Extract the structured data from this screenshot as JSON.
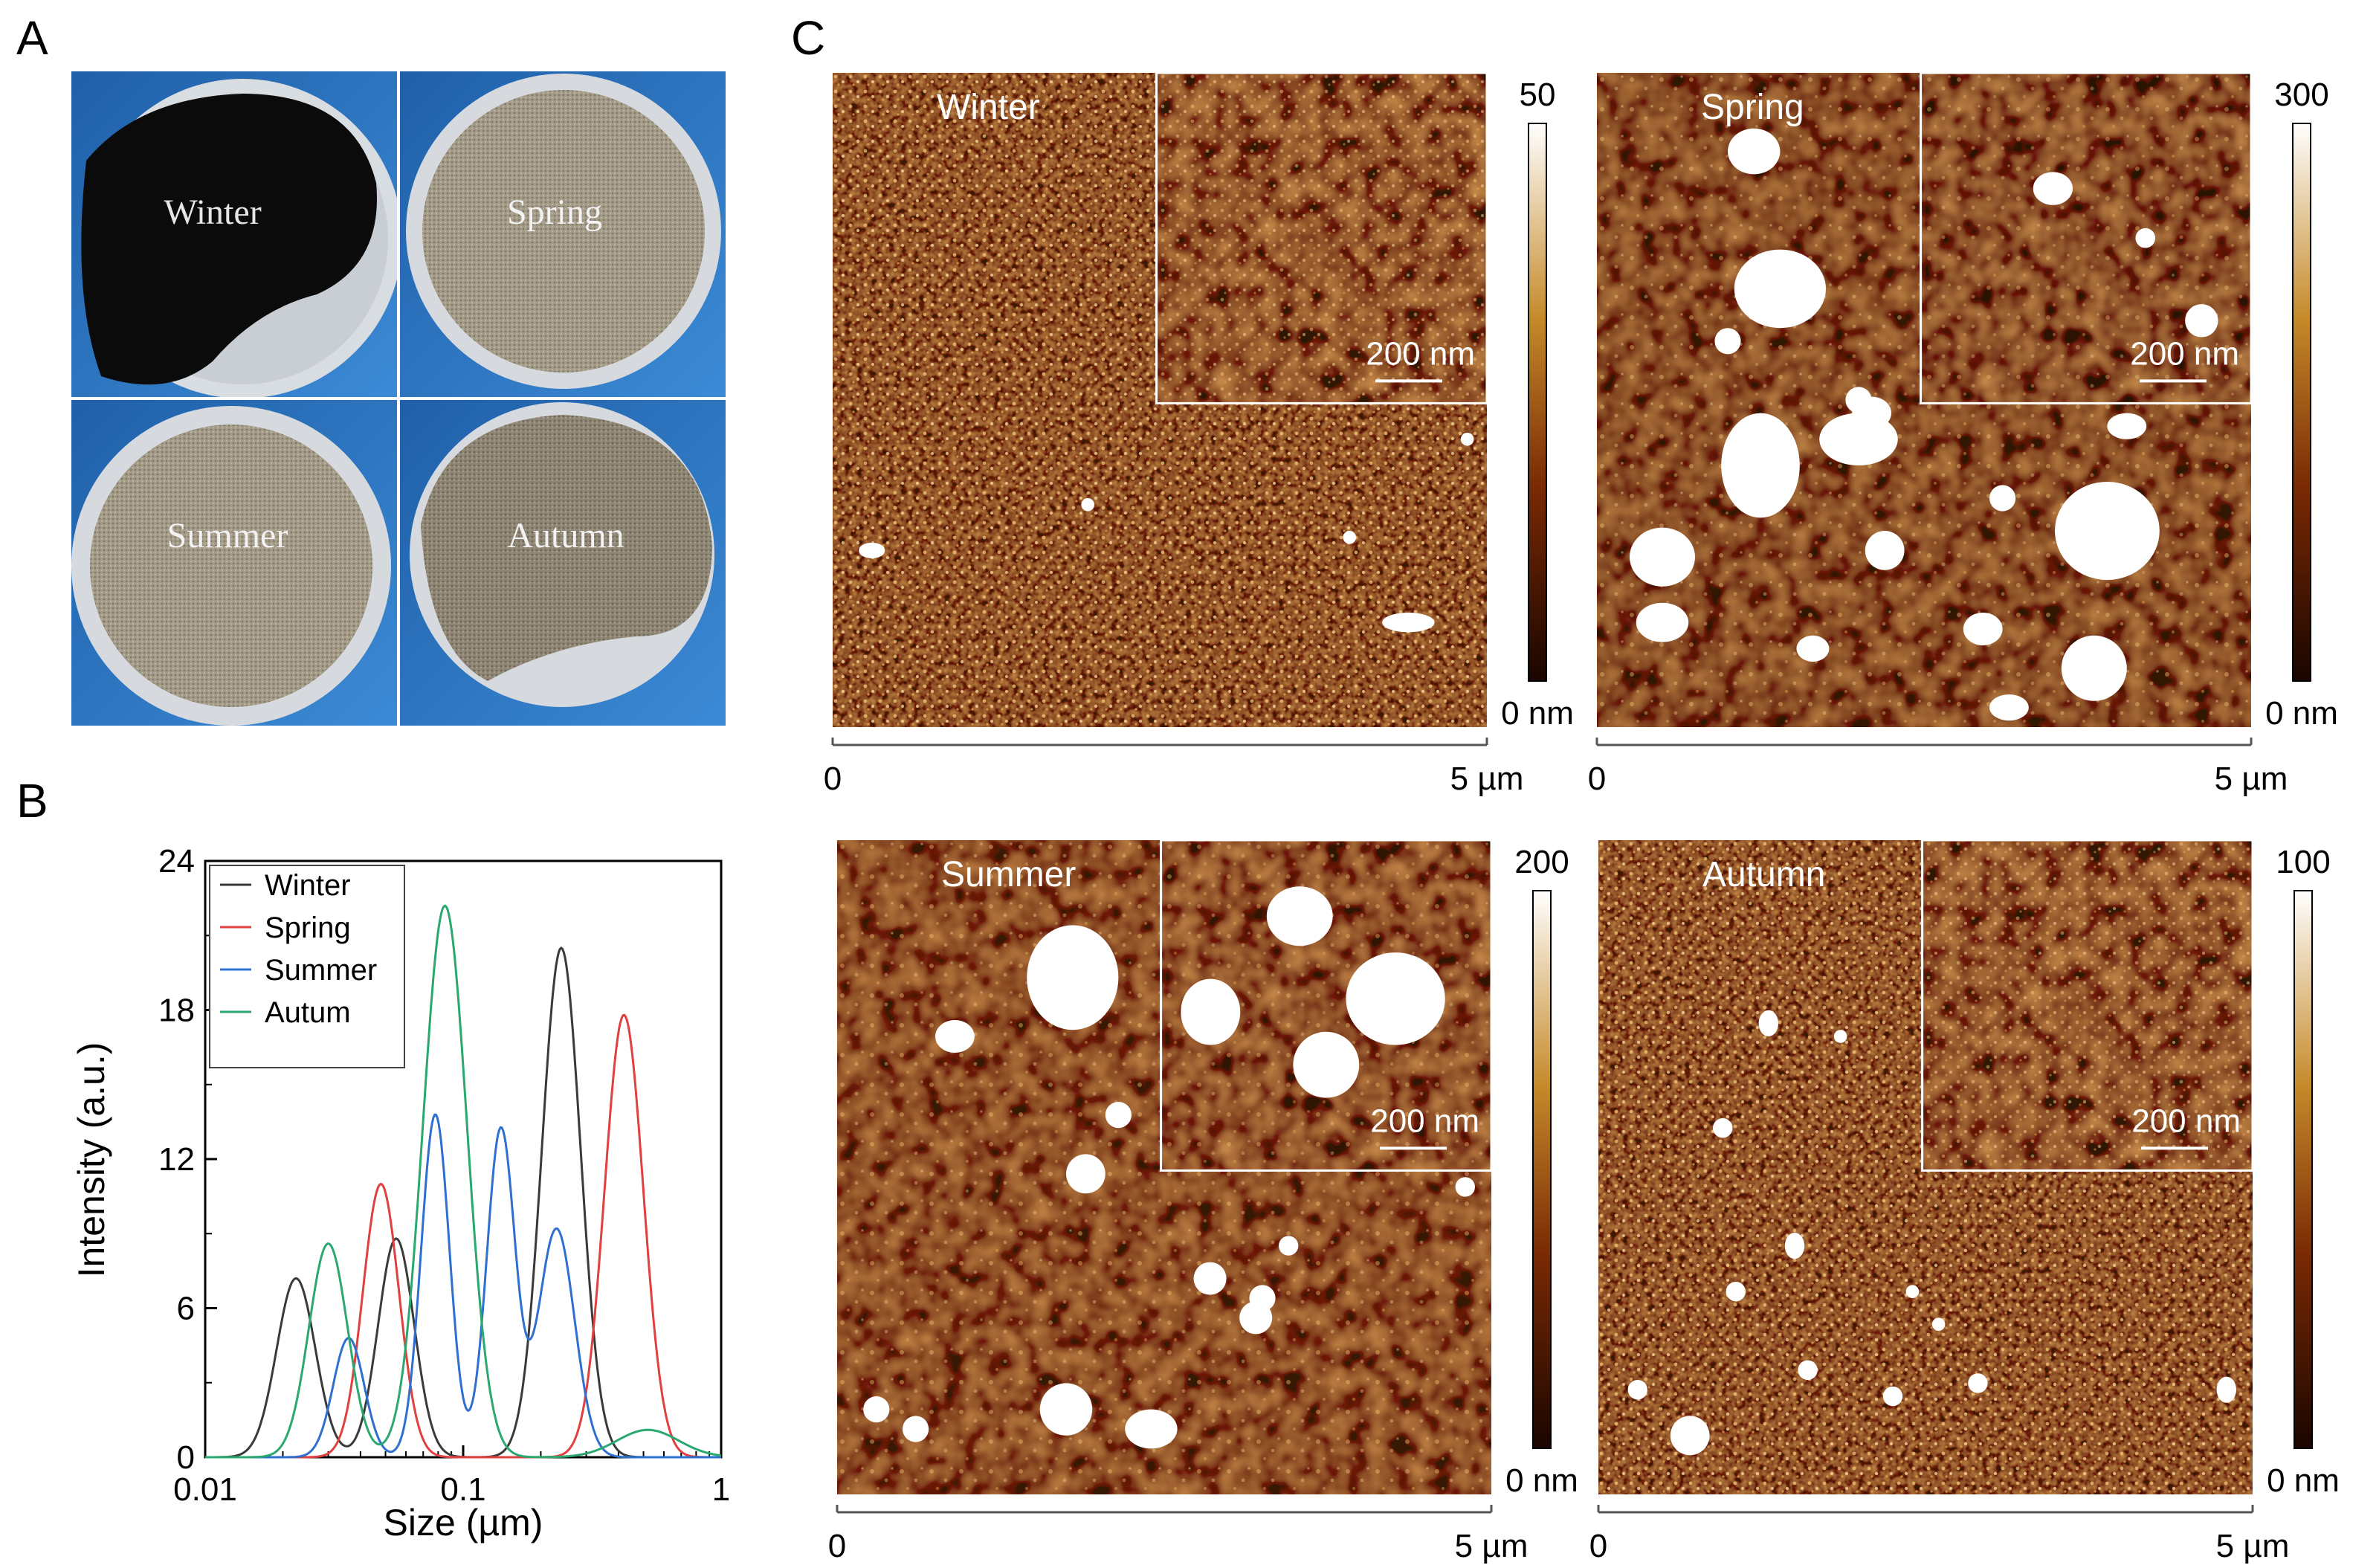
{
  "panels": {
    "a": "A",
    "b": "B",
    "c": "C"
  },
  "photos": [
    {
      "label": "Winter"
    },
    {
      "label": "Spring"
    },
    {
      "label": "Summer"
    },
    {
      "label": "Autumn"
    }
  ],
  "chart_data": {
    "type": "line",
    "xlabel": "Size (µm)",
    "ylabel": "Intensity (a.u.)",
    "x_scale": "log",
    "xlim": [
      0.01,
      1
    ],
    "ylim": [
      0,
      24
    ],
    "x_ticks": [
      "0.01",
      "0.1",
      "1"
    ],
    "y_ticks": [
      "0",
      "6",
      "12",
      "18",
      "24"
    ],
    "legend_position": "top-left",
    "series": [
      {
        "name": "Winter",
        "color": "#3a3a3a",
        "peaks": [
          {
            "x": 0.0225,
            "y": 7.2,
            "w": 0.075
          },
          {
            "x": 0.055,
            "y": 8.8,
            "w": 0.07
          },
          {
            "x": 0.24,
            "y": 20.5,
            "w": 0.075
          }
        ]
      },
      {
        "name": "Spring",
        "color": "#e04040",
        "peaks": [
          {
            "x": 0.048,
            "y": 11.0,
            "w": 0.07
          },
          {
            "x": 0.42,
            "y": 17.8,
            "w": 0.075
          }
        ]
      },
      {
        "name": "Summer",
        "color": "#2f6fd0",
        "peaks": [
          {
            "x": 0.036,
            "y": 4.8,
            "w": 0.06
          },
          {
            "x": 0.078,
            "y": 13.8,
            "w": 0.055
          },
          {
            "x": 0.14,
            "y": 13.2,
            "w": 0.055
          },
          {
            "x": 0.23,
            "y": 9.2,
            "w": 0.07
          }
        ]
      },
      {
        "name": "Autum",
        "color": "#2aa870",
        "peaks": [
          {
            "x": 0.03,
            "y": 8.6,
            "w": 0.075
          },
          {
            "x": 0.085,
            "y": 22.2,
            "w": 0.085
          },
          {
            "x": 0.52,
            "y": 1.1,
            "w": 0.12
          }
        ]
      }
    ]
  },
  "afm": [
    {
      "label": "Winter",
      "colorbar_max": "50",
      "colorbar_min": "0 nm",
      "axis_start": "0",
      "axis_end": "5 µm",
      "inset_scale": "200 nm"
    },
    {
      "label": "Spring",
      "colorbar_max": "300",
      "colorbar_min": "0 nm",
      "axis_start": "0",
      "axis_end": "5 µm",
      "inset_scale": "200 nm"
    },
    {
      "label": "Summer",
      "colorbar_max": "200",
      "colorbar_min": "0 nm",
      "axis_start": "0",
      "axis_end": "5 µm",
      "inset_scale": "200 nm"
    },
    {
      "label": "Autumn",
      "colorbar_max": "100",
      "colorbar_min": "0 nm",
      "axis_start": "0",
      "axis_end": "5 µm",
      "inset_scale": "200 nm"
    }
  ]
}
